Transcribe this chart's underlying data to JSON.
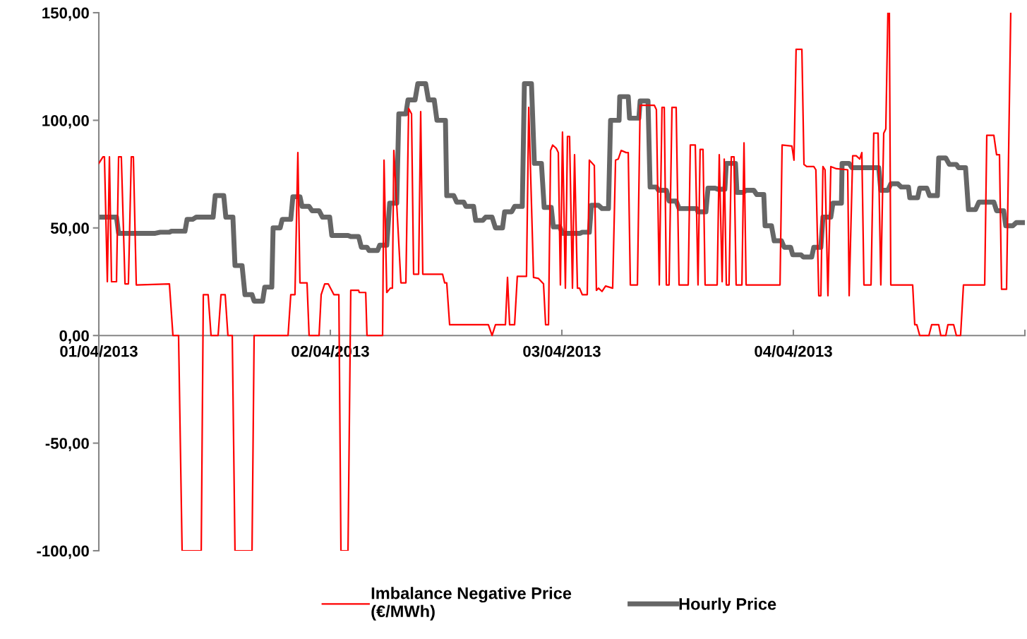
{
  "chart_data": {
    "type": "line",
    "series": [
      {
        "name": "Imbalance Negative Price\n(€/MWh)",
        "color": "#ff0000",
        "x": [
          "2013-04-01T00:00",
          "2013-04-01T00:26",
          "2013-04-01T00:35",
          "2013-04-01T00:53",
          "2013-04-01T01:06",
          "2013-04-01T01:19",
          "2013-04-01T01:50",
          "2013-04-01T02:03",
          "2013-04-01T02:20",
          "2013-04-01T02:43",
          "2013-04-01T03:04",
          "2013-04-01T03:22",
          "2013-04-01T03:35",
          "2013-04-01T03:53",
          "2013-04-01T07:19",
          "2013-04-01T07:41",
          "2013-04-01T08:16",
          "2013-04-01T08:38",
          "2013-04-01T10:37",
          "2013-04-01T10:50",
          "2013-04-01T11:20",
          "2013-04-01T11:38",
          "2013-04-01T12:22",
          "2013-04-01T12:40",
          "2013-04-01T13:06",
          "2013-04-01T13:23",
          "2013-04-01T13:50",
          "2013-04-01T14:07",
          "2013-04-01T15:53",
          "2013-04-01T16:06",
          "2013-04-01T19:37",
          "2013-04-01T19:54",
          "2013-04-01T20:20",
          "2013-04-01T20:38",
          "2013-04-01T20:51",
          "2013-04-01T21:35",
          "2013-04-01T21:48",
          "2013-04-01T22:50",
          "2013-04-01T23:03",
          "2013-04-01T23:25",
          "2013-04-01T23:47",
          "2013-04-02T00:22",
          "2013-04-02T00:53",
          "2013-04-02T01:06",
          "2013-04-02T01:50",
          "2013-04-02T02:07",
          "2013-04-02T02:56",
          "2013-04-02T03:00",
          "2013-04-02T03:40",
          "2013-04-02T03:48",
          "2013-04-02T05:25",
          "2013-04-02T05:34",
          "2013-04-02T05:51",
          "2013-04-02T06:13",
          "2013-04-02T06:26",
          "2013-04-02T06:35",
          "2013-04-02T07:19",
          "2013-04-02T07:50",
          "2013-04-02T08:07",
          "2013-04-02T08:25",
          "2013-04-02T08:38",
          "2013-04-02T09:09",
          "2013-04-02T09:22",
          "2013-04-02T09:35",
          "2013-04-02T11:38",
          "2013-04-02T11:51",
          "2013-04-02T12:04",
          "2013-04-02T12:22",
          "2013-04-02T16:23",
          "2013-04-02T16:46",
          "2013-04-02T17:07",
          "2013-04-02T18:09",
          "2013-04-02T18:22",
          "2013-04-02T18:35",
          "2013-04-02T19:06",
          "2013-04-02T19:23",
          "2013-04-02T20:20",
          "2013-04-02T20:34",
          "2013-04-02T21:04",
          "2013-04-02T21:35",
          "2013-04-02T22:06",
          "2013-04-02T22:19",
          "2013-04-02T22:37",
          "2013-04-02T22:50",
          "2013-04-02T23:03",
          "2013-04-02T23:25",
          "2013-04-02T23:38",
          "2013-04-02T23:51",
          "2013-04-03T00:04",
          "2013-04-03T00:22",
          "2013-04-03T00:35",
          "2013-04-03T00:48",
          "2013-04-03T01:06",
          "2013-04-03T01:19",
          "2013-04-03T01:37",
          "2013-04-03T01:50",
          "2013-04-03T02:07",
          "2013-04-03T02:38",
          "2013-04-03T02:51",
          "2013-04-03T03:22",
          "2013-04-03T03:35",
          "2013-04-03T03:48",
          "2013-04-03T04:10",
          "2013-04-03T04:32",
          "2013-04-03T05:16",
          "2013-04-03T05:34",
          "2013-04-03T05:51",
          "2013-04-03T06:09",
          "2013-04-03T06:40",
          "2013-04-03T06:53",
          "2013-04-03T07:06",
          "2013-04-03T07:50",
          "2013-04-03T08:07",
          "2013-04-03T09:35",
          "2013-04-03T09:48",
          "2013-04-03T10:06",
          "2013-04-03T10:23",
          "2013-04-03T10:37",
          "2013-04-03T10:50",
          "2013-04-03T11:07",
          "2013-04-03T11:25",
          "2013-04-03T11:51",
          "2013-04-03T12:09",
          "2013-04-03T13:06",
          "2013-04-03T13:19",
          "2013-04-03T13:50",
          "2013-04-03T14:07",
          "2013-04-03T14:20",
          "2013-04-03T14:38",
          "2013-04-03T14:51",
          "2013-04-03T16:06",
          "2013-04-03T16:19",
          "2013-04-03T16:37",
          "2013-04-03T16:50",
          "2013-04-03T17:03",
          "2013-04-03T17:20",
          "2013-04-03T17:34",
          "2013-04-03T17:51",
          "2013-04-03T18:04",
          "2013-04-03T18:40",
          "2013-04-03T18:53",
          "2013-04-03T19:06",
          "2013-04-03T22:37",
          "2013-04-03T22:50",
          "2013-04-03T23:51",
          "2013-04-04T00:04",
          "2013-04-04T00:17",
          "2013-04-04T00:53",
          "2013-04-04T01:06",
          "2013-04-04T01:23",
          "2013-04-04T02:07",
          "2013-04-04T02:20",
          "2013-04-04T02:38",
          "2013-04-04T02:51",
          "2013-04-04T03:04",
          "2013-04-04T03:17",
          "2013-04-04T03:35",
          "2013-04-04T03:53",
          "2013-04-04T04:28",
          "2013-04-04T05:38",
          "2013-04-04T05:47",
          "2013-04-04T06:09",
          "2013-04-04T06:31",
          "2013-04-04T06:53",
          "2013-04-04T07:06",
          "2013-04-04T07:19",
          "2013-04-04T08:03",
          "2013-04-04T08:20",
          "2013-04-04T08:47",
          "2013-04-04T09:04",
          "2013-04-04T09:22",
          "2013-04-04T09:35",
          "2013-04-04T09:48",
          "2013-04-04T09:57",
          "2013-04-04T10:06",
          "2013-04-04T12:22",
          "2013-04-04T12:35",
          "2013-04-04T12:48",
          "2013-04-04T13:06",
          "2013-04-04T14:03",
          "2013-04-04T14:20",
          "2013-04-04T15:04",
          "2013-04-04T15:17",
          "2013-04-04T15:48",
          "2013-04-04T16:01",
          "2013-04-04T16:37",
          "2013-04-04T16:54",
          "2013-04-04T17:20",
          "2013-04-04T17:38",
          "2013-04-04T19:50",
          "2013-04-04T20:03",
          "2013-04-04T20:47",
          "2013-04-04T21:04",
          "2013-04-04T21:22",
          "2013-04-04T21:35",
          "2013-04-04T22:06",
          "2013-04-04T22:32"
        ],
        "values": [
          80,
          83,
          83,
          25,
          83,
          25,
          25,
          83,
          83,
          24,
          24,
          83,
          83,
          23.5,
          24,
          0,
          0,
          -100,
          -100,
          19,
          19,
          0,
          0,
          19,
          19,
          0,
          0,
          -100,
          -100,
          0,
          0,
          19,
          19,
          85,
          24.5,
          24.5,
          0,
          0,
          19,
          24,
          24,
          19,
          19,
          -100,
          -100,
          21,
          21,
          20,
          20,
          0,
          0,
          81.5,
          20,
          22,
          22,
          86,
          24.5,
          24.5,
          105.5,
          103,
          28.5,
          28.5,
          104,
          28.5,
          28.5,
          24.5,
          24.5,
          5,
          5,
          0,
          5,
          5,
          27,
          5,
          5,
          27.5,
          27.5,
          106,
          27,
          26.5,
          24,
          5,
          5,
          86,
          88.5,
          87,
          85,
          23.5,
          94.5,
          22,
          92.5,
          92.5,
          22,
          84,
          22,
          22,
          19,
          19,
          81.5,
          79,
          21,
          22,
          20.5,
          23,
          22,
          81.5,
          82,
          86,
          85,
          85,
          23.5,
          23.5,
          107,
          107,
          105,
          23.5,
          106,
          106,
          23.5,
          23.5,
          106,
          106,
          23.5,
          23.5,
          88.5,
          88.5,
          23.5,
          86.5,
          86.5,
          23.5,
          23.5,
          84,
          25,
          82,
          23.5,
          23.5,
          83,
          83,
          23.5,
          23.5,
          89.5,
          23.5,
          23.5,
          88.5,
          88,
          81.5,
          133,
          133,
          79.5,
          78.5,
          78.5,
          77,
          18.5,
          18.5,
          78.5,
          77,
          18.5,
          78.5,
          77.5,
          77,
          18.5,
          83.5,
          83.5,
          82,
          85,
          23.5,
          23.5,
          94,
          94,
          23.5,
          94,
          96,
          150,
          150,
          23.5,
          23.5,
          5,
          5,
          0,
          0,
          5,
          5,
          0,
          0,
          5,
          5,
          0,
          0,
          23.5,
          23.5,
          93,
          93,
          84,
          84,
          21.5,
          21.5,
          150
        ]
      },
      {
        "name": "Hourly Price",
        "color": "#666666",
        "x": [
          "2013-04-01T00:00",
          "2013-04-01T01:50",
          "2013-04-01T02:03",
          "2013-04-01T05:51",
          "2013-04-01T06:22",
          "2013-04-01T07:19",
          "2013-04-01T07:32",
          "2013-04-01T08:56",
          "2013-04-01T09:09",
          "2013-04-01T09:44",
          "2013-04-01T10:06",
          "2013-04-01T11:51",
          "2013-04-01T12:04",
          "2013-04-01T12:57",
          "2013-04-01T13:10",
          "2013-04-01T13:54",
          "2013-04-01T14:07",
          "2013-04-01T14:51",
          "2013-04-01T15:09",
          "2013-04-01T15:53",
          "2013-04-01T16:06",
          "2013-04-01T16:59",
          "2013-04-01T17:12",
          "2013-04-01T17:56",
          "2013-04-01T18:04",
          "2013-04-01T18:48",
          "2013-04-01T19:01",
          "2013-04-01T19:54",
          "2013-04-01T20:07",
          "2013-04-01T20:51",
          "2013-04-01T21:04",
          "2013-04-01T21:48",
          "2013-04-01T22:06",
          "2013-04-01T22:50",
          "2013-04-01T23:11",
          "2013-04-01T23:56",
          "2013-04-02T00:09",
          "2013-04-02T01:50",
          "2013-04-02T02:07",
          "2013-04-02T02:56",
          "2013-04-02T03:13",
          "2013-04-02T03:48",
          "2013-04-02T04:01",
          "2013-04-02T04:54",
          "2013-04-02T05:07",
          "2013-04-02T05:51",
          "2013-04-02T06:09",
          "2013-04-02T06:53",
          "2013-04-02T07:06",
          "2013-04-02T07:50",
          "2013-04-02T08:03",
          "2013-04-02T08:47",
          "2013-04-02T09:04",
          "2013-04-02T09:53",
          "2013-04-02T10:10",
          "2013-04-02T10:46",
          "2013-04-02T11:03",
          "2013-04-02T11:56",
          "2013-04-02T12:04",
          "2013-04-02T12:48",
          "2013-04-02T13:06",
          "2013-04-02T13:50",
          "2013-04-02T14:03",
          "2013-04-02T14:51",
          "2013-04-02T15:04",
          "2013-04-02T15:48",
          "2013-04-02T16:06",
          "2013-04-02T16:46",
          "2013-04-02T17:07",
          "2013-04-02T17:51",
          "2013-04-02T18:04",
          "2013-04-02T18:48",
          "2013-04-02T19:06",
          "2013-04-02T19:54",
          "2013-04-02T20:07",
          "2013-04-02T20:51",
          "2013-04-02T21:09",
          "2013-04-02T21:53",
          "2013-04-02T22:10",
          "2013-04-02T22:54",
          "2013-04-02T23:07",
          "2013-04-02T23:47",
          "2013-04-03T00:04",
          "2013-04-03T01:54",
          "2013-04-03T02:07",
          "2013-04-03T02:51",
          "2013-04-03T03:04",
          "2013-04-03T03:48",
          "2013-04-03T04:10",
          "2013-04-03T04:50",
          "2013-04-03T05:03",
          "2013-04-03T05:56",
          "2013-04-03T06:00",
          "2013-04-03T06:53",
          "2013-04-03T07:01",
          "2013-04-03T07:59",
          "2013-04-03T08:07",
          "2013-04-03T08:56",
          "2013-04-03T09:09",
          "2013-04-03T09:48",
          "2013-04-03T10:01",
          "2013-04-03T10:50",
          "2013-04-03T11:07",
          "2013-04-03T11:51",
          "2013-04-03T12:09",
          "2013-04-03T13:59",
          "2013-04-03T14:07",
          "2013-04-03T14:56",
          "2013-04-03T15:09",
          "2013-04-03T15:53",
          "2013-04-03T16:10",
          "2013-04-03T16:54",
          "2013-04-03T17:03",
          "2013-04-03T18:00",
          "2013-04-03T18:09",
          "2013-04-03T18:48",
          "2013-04-03T19:06",
          "2013-04-03T19:54",
          "2013-04-03T20:12",
          "2013-04-03T20:56",
          "2013-04-03T21:04",
          "2013-04-03T21:44",
          "2013-04-03T22:01",
          "2013-04-03T22:46",
          "2013-04-03T23:03",
          "2013-04-03T23:43",
          "2013-04-03T23:56",
          "2013-04-04T00:48",
          "2013-04-04T01:01",
          "2013-04-04T01:54",
          "2013-04-04T02:07",
          "2013-04-04T02:51",
          "2013-04-04T03:04",
          "2013-04-04T03:53",
          "2013-04-04T04:06",
          "2013-04-04T04:59",
          "2013-04-04T05:03",
          "2013-04-04T05:47",
          "2013-04-04T06:04",
          "2013-04-04T08:51",
          "2013-04-04T09:04",
          "2013-04-04T09:48",
          "2013-04-04T10:06",
          "2013-04-04T10:50",
          "2013-04-04T11:11",
          "2013-04-04T11:56",
          "2013-04-04T12:04",
          "2013-04-04T12:53",
          "2013-04-04T13:06",
          "2013-04-04T13:50",
          "2013-04-04T14:07",
          "2013-04-04T14:56",
          "2013-04-04T15:04",
          "2013-04-04T15:48",
          "2013-04-04T16:10",
          "2013-04-04T16:54",
          "2013-04-04T17:07",
          "2013-04-04T17:51",
          "2013-04-04T18:09",
          "2013-04-04T18:53",
          "2013-04-04T19:14",
          "2013-04-04T20:47",
          "2013-04-04T21:04",
          "2013-04-04T21:48",
          "2013-04-04T22:01",
          "2013-04-04T22:45",
          "2013-04-04T23:07",
          "2013-04-04T23:51"
        ],
        "values": [
          55,
          55,
          47.5,
          47.5,
          48,
          48,
          48.5,
          48.5,
          54,
          54,
          55,
          55,
          65,
          65,
          55,
          55,
          32.5,
          32.5,
          19,
          19,
          16,
          16,
          22.5,
          22.5,
          50,
          50,
          54,
          54,
          64.5,
          64.5,
          60,
          60,
          58,
          58,
          55,
          55,
          46.5,
          46.5,
          46,
          46,
          41,
          41,
          39.5,
          39.5,
          42,
          42,
          61.5,
          61.5,
          103,
          103,
          109.5,
          109.5,
          117,
          117,
          109.5,
          109.5,
          100,
          100,
          65,
          65,
          62,
          62,
          60,
          60,
          53.5,
          53.5,
          55,
          55,
          50,
          50,
          57.5,
          57.5,
          60,
          60,
          117,
          117,
          80,
          80,
          59.5,
          59.5,
          50.5,
          50.5,
          47.5,
          47.5,
          48,
          48,
          60.5,
          60.5,
          59,
          59,
          100,
          100,
          111,
          111,
          101,
          101,
          109,
          109,
          69,
          69,
          67.5,
          67.5,
          62.5,
          62.5,
          59,
          59,
          57.5,
          57.5,
          68.5,
          68.5,
          68,
          68,
          80,
          80,
          66.5,
          66.5,
          67.5,
          67.5,
          65.5,
          65.5,
          51,
          51,
          44,
          44,
          41,
          41,
          37.5,
          37.5,
          36.5,
          36.5,
          41,
          41,
          55,
          55,
          61.5,
          61.5,
          80,
          80,
          78,
          78,
          67.5,
          67.5,
          70.5,
          70.5,
          69,
          69,
          64,
          64,
          68.5,
          68.5,
          65,
          65,
          82.5,
          82.5,
          79.5,
          79.5,
          78,
          78,
          58.5,
          58.5,
          62,
          62,
          58,
          58,
          51,
          51,
          52.5,
          52.5
        ]
      }
    ],
    "xlim": [
      "2013-04-01",
      "2013-04-05"
    ],
    "xticks": [
      {
        "value": "2013-04-01",
        "label": "01/04/2013"
      },
      {
        "value": "2013-04-02",
        "label": "02/04/2013"
      },
      {
        "value": "2013-04-03",
        "label": "03/04/2013"
      },
      {
        "value": "2013-04-04",
        "label": "04/04/2013"
      },
      {
        "value": "2013-04-05",
        "label": null
      }
    ],
    "ylim": [
      -100,
      150
    ],
    "yticks": [
      {
        "value": -100,
        "label": "-100,00"
      },
      {
        "value": -50,
        "label": "-50,00"
      },
      {
        "value": 0,
        "label": "0,00"
      },
      {
        "value": 50,
        "label": "50,00"
      },
      {
        "value": 100,
        "label": "100,00"
      },
      {
        "value": 150,
        "label": "150,00"
      }
    ],
    "grid": false,
    "legend": "bottom",
    "marker": "none",
    "line_style": "solid"
  }
}
